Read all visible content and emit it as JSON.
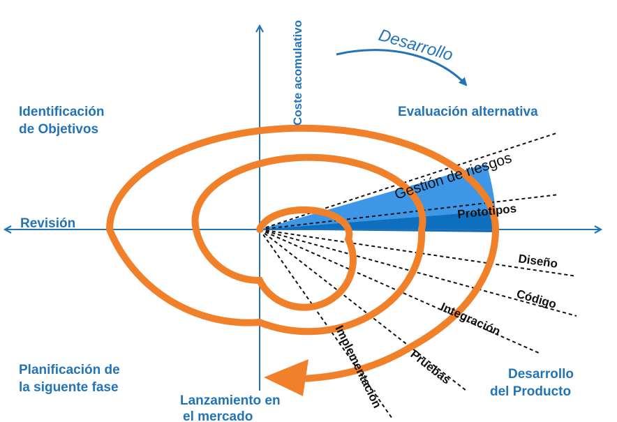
{
  "diagram": {
    "axis_label_vertical": "Coste acomulativo",
    "direction_label": "Desarrollo",
    "quadrants": {
      "top_left": [
        "Identificación",
        "de Objetivos"
      ],
      "top_right": "Evaluación alternativa",
      "bottom_left": [
        "Planificación de",
        "la siguente fase"
      ],
      "bottom_right": [
        "Desarrollo",
        "del Producto"
      ],
      "bottom_center": [
        "Lanzamiento en",
        "el mercado"
      ],
      "left": "Revisión"
    },
    "phases": [
      "Gestión de riesgos",
      "Prototipos",
      "Diseño",
      "Código",
      "Integración",
      "Pruebas",
      "Implementación"
    ],
    "colors": {
      "axis": "#2373b9",
      "spiral": "#f0802a",
      "risk_fill": "#3d96e6",
      "proto_fill": "#0f6fbf",
      "text_blue": "#2373b9",
      "text_dark": "#111111"
    }
  }
}
